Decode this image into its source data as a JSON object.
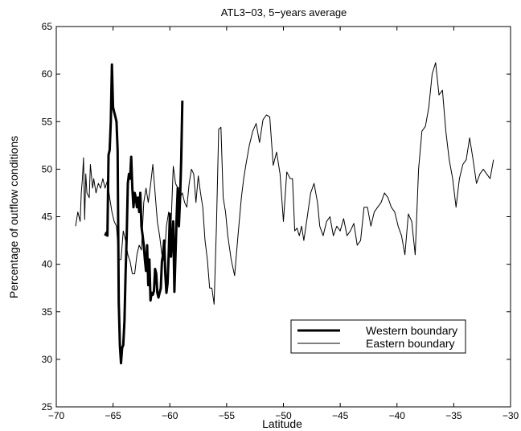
{
  "chart_data": {
    "type": "line",
    "title": "ATL3−03, 5−years average",
    "xlabel": "Latitude",
    "ylabel": "Percentage of outflow conditions",
    "xlim": [
      -70,
      -30
    ],
    "ylim": [
      25,
      65
    ],
    "xticks": [
      -70,
      -65,
      -60,
      -55,
      -50,
      -45,
      -40,
      -35,
      -30
    ],
    "xtick_labels": [
      "−70",
      "−65",
      "−60",
      "−55",
      "−50",
      "−45",
      "−40",
      "−35",
      "−30"
    ],
    "yticks": [
      25,
      30,
      35,
      40,
      45,
      50,
      55,
      60,
      65
    ],
    "ytick_labels": [
      "25",
      "30",
      "35",
      "40",
      "45",
      "50",
      "55",
      "60",
      "65"
    ],
    "grid": false,
    "legend_position": "lower-right",
    "series": [
      {
        "name": "Western boundary",
        "style": "thick",
        "color": "#000000",
        "points": [
          [
            -65.7,
            43.0
          ],
          [
            -65.6,
            43.3
          ],
          [
            -65.5,
            43.0
          ],
          [
            -65.4,
            51.5
          ],
          [
            -65.3,
            52.0
          ],
          [
            -65.2,
            55.0
          ],
          [
            -65.1,
            61.0
          ],
          [
            -65.0,
            56.5
          ],
          [
            -64.9,
            56.0
          ],
          [
            -64.8,
            55.5
          ],
          [
            -64.7,
            55.0
          ],
          [
            -64.6,
            52.0
          ],
          [
            -64.5,
            36.0
          ],
          [
            -64.4,
            31.5
          ],
          [
            -64.3,
            29.6
          ],
          [
            -64.2,
            31.2
          ],
          [
            -64.1,
            31.5
          ],
          [
            -64.0,
            34.0
          ],
          [
            -63.9,
            39.0
          ],
          [
            -63.8,
            43.0
          ],
          [
            -63.7,
            48.5
          ],
          [
            -63.6,
            49.5
          ],
          [
            -63.5,
            49.0
          ],
          [
            -63.4,
            51.3
          ],
          [
            -63.3,
            48.0
          ],
          [
            -63.2,
            46.0
          ],
          [
            -63.1,
            47.5
          ],
          [
            -63.0,
            47.0
          ],
          [
            -62.9,
            46.0
          ],
          [
            -62.8,
            47.0
          ],
          [
            -62.7,
            45.5
          ],
          [
            -62.6,
            47.5
          ],
          [
            -62.5,
            44.0
          ],
          [
            -62.4,
            43.0
          ],
          [
            -62.3,
            42.0
          ],
          [
            -62.2,
            40.5
          ],
          [
            -62.1,
            39.3
          ],
          [
            -62.0,
            42.0
          ],
          [
            -61.9,
            37.8
          ],
          [
            -61.8,
            40.5
          ],
          [
            -61.7,
            36.2
          ],
          [
            -61.6,
            37.0
          ],
          [
            -61.5,
            36.8
          ],
          [
            -61.4,
            37.2
          ],
          [
            -61.3,
            39.5
          ],
          [
            -61.2,
            39.0
          ],
          [
            -61.1,
            37.0
          ],
          [
            -61.0,
            36.5
          ],
          [
            -60.9,
            37.0
          ],
          [
            -60.8,
            37.5
          ],
          [
            -60.7,
            40.3
          ],
          [
            -60.6,
            41.0
          ],
          [
            -60.5,
            42.5
          ],
          [
            -60.4,
            39.0
          ],
          [
            -60.3,
            37.0
          ],
          [
            -60.2,
            38.0
          ],
          [
            -60.1,
            41.0
          ],
          [
            -60.0,
            45.3
          ],
          [
            -59.9,
            40.8
          ],
          [
            -59.8,
            43.0
          ],
          [
            -59.7,
            44.5
          ],
          [
            -59.6,
            37.1
          ],
          [
            -59.5,
            41.0
          ],
          [
            -59.4,
            45.0
          ],
          [
            -59.3,
            48.0
          ],
          [
            -59.2,
            44.0
          ],
          [
            -59.1,
            47.0
          ],
          [
            -59.0,
            51.0
          ],
          [
            -58.9,
            57.2
          ]
        ]
      },
      {
        "name": "Eastern boundary",
        "style": "thin",
        "color": "#000000",
        "points": [
          [
            -68.3,
            44.0
          ],
          [
            -68.1,
            45.5
          ],
          [
            -67.9,
            44.5
          ],
          [
            -67.8,
            47.5
          ],
          [
            -67.7,
            49.0
          ],
          [
            -67.6,
            51.2
          ],
          [
            -67.5,
            44.7
          ],
          [
            -67.4,
            49.5
          ],
          [
            -67.3,
            47.5
          ],
          [
            -67.1,
            47.0
          ],
          [
            -67.0,
            50.5
          ],
          [
            -66.8,
            48.0
          ],
          [
            -66.7,
            49.0
          ],
          [
            -66.5,
            47.5
          ],
          [
            -66.3,
            48.5
          ],
          [
            -66.1,
            48.0
          ],
          [
            -65.9,
            49.0
          ],
          [
            -65.7,
            48.0
          ],
          [
            -65.5,
            48.8
          ],
          [
            -65.3,
            47.0
          ],
          [
            -65.1,
            45.5
          ],
          [
            -64.9,
            44.5
          ],
          [
            -64.7,
            44.0
          ],
          [
            -64.5,
            40.5
          ],
          [
            -64.3,
            40.5
          ],
          [
            -64.1,
            43.5
          ],
          [
            -63.9,
            42.5
          ],
          [
            -63.7,
            41.0
          ],
          [
            -63.5,
            40.3
          ],
          [
            -63.3,
            39.0
          ],
          [
            -63.1,
            39.0
          ],
          [
            -62.9,
            41.0
          ],
          [
            -62.7,
            42.0
          ],
          [
            -62.5,
            41.5
          ],
          [
            -62.3,
            46.5
          ],
          [
            -62.1,
            48.0
          ],
          [
            -61.9,
            46.5
          ],
          [
            -61.7,
            48.3
          ],
          [
            -61.5,
            50.5
          ],
          [
            -61.3,
            47.5
          ],
          [
            -61.1,
            44.5
          ],
          [
            -60.9,
            43.0
          ],
          [
            -60.7,
            41.0
          ],
          [
            -60.5,
            40.3
          ],
          [
            -60.3,
            44.0
          ],
          [
            -60.1,
            45.5
          ],
          [
            -59.9,
            44.0
          ],
          [
            -59.7,
            50.3
          ],
          [
            -59.5,
            48.5
          ],
          [
            -59.3,
            48.0
          ],
          [
            -59.1,
            47.0
          ],
          [
            -58.9,
            47.5
          ],
          [
            -58.7,
            46.5
          ],
          [
            -58.5,
            46.0
          ],
          [
            -58.3,
            48.5
          ],
          [
            -58.1,
            50.0
          ],
          [
            -57.9,
            49.5
          ],
          [
            -57.7,
            46.5
          ],
          [
            -57.5,
            49.3
          ],
          [
            -57.3,
            47.5
          ],
          [
            -57.1,
            46.0
          ],
          [
            -56.9,
            42.5
          ],
          [
            -56.7,
            40.5
          ],
          [
            -56.5,
            37.5
          ],
          [
            -56.3,
            37.5
          ],
          [
            -56.1,
            35.8
          ],
          [
            -55.9,
            44.0
          ],
          [
            -55.7,
            54.2
          ],
          [
            -55.5,
            54.4
          ],
          [
            -55.3,
            47.0
          ],
          [
            -55.1,
            45.5
          ],
          [
            -54.9,
            43.0
          ],
          [
            -54.6,
            40.5
          ],
          [
            -54.3,
            38.8
          ],
          [
            -54.0,
            43.0
          ],
          [
            -53.7,
            47.0
          ],
          [
            -53.5,
            49.0
          ],
          [
            -53.3,
            50.5
          ],
          [
            -53.0,
            52.5
          ],
          [
            -52.7,
            54.0
          ],
          [
            -52.4,
            54.8
          ],
          [
            -52.1,
            52.8
          ],
          [
            -51.8,
            55.2
          ],
          [
            -51.5,
            55.7
          ],
          [
            -51.2,
            55.5
          ],
          [
            -50.9,
            50.4
          ],
          [
            -50.6,
            51.8
          ],
          [
            -50.3,
            49.5
          ],
          [
            -50.0,
            44.5
          ],
          [
            -49.7,
            49.7
          ],
          [
            -49.4,
            49.0
          ],
          [
            -49.2,
            49.0
          ],
          [
            -49.0,
            43.5
          ],
          [
            -48.8,
            43.8
          ],
          [
            -48.6,
            43.0
          ],
          [
            -48.4,
            44.0
          ],
          [
            -48.2,
            42.5
          ],
          [
            -47.9,
            45.0
          ],
          [
            -47.6,
            47.5
          ],
          [
            -47.3,
            48.5
          ],
          [
            -47.0,
            46.5
          ],
          [
            -46.8,
            44.0
          ],
          [
            -46.5,
            43.0
          ],
          [
            -46.2,
            44.5
          ],
          [
            -45.9,
            45.0
          ],
          [
            -45.6,
            43.0
          ],
          [
            -45.3,
            44.0
          ],
          [
            -45.0,
            43.5
          ],
          [
            -44.7,
            44.8
          ],
          [
            -44.4,
            43.0
          ],
          [
            -44.1,
            43.5
          ],
          [
            -43.8,
            44.3
          ],
          [
            -43.5,
            42.0
          ],
          [
            -43.2,
            42.5
          ],
          [
            -42.9,
            46.0
          ],
          [
            -42.6,
            46.0
          ],
          [
            -42.3,
            44.0
          ],
          [
            -42.0,
            45.5
          ],
          [
            -41.7,
            46.0
          ],
          [
            -41.4,
            46.5
          ],
          [
            -41.1,
            47.5
          ],
          [
            -40.8,
            47.0
          ],
          [
            -40.5,
            46.0
          ],
          [
            -40.2,
            45.5
          ],
          [
            -39.9,
            44.0
          ],
          [
            -39.6,
            43.0
          ],
          [
            -39.3,
            41.0
          ],
          [
            -39.0,
            45.3
          ],
          [
            -38.7,
            44.5
          ],
          [
            -38.4,
            41.0
          ],
          [
            -38.1,
            50.0
          ],
          [
            -37.8,
            54.0
          ],
          [
            -37.5,
            54.5
          ],
          [
            -37.2,
            56.5
          ],
          [
            -36.9,
            60.0
          ],
          [
            -36.6,
            61.2
          ],
          [
            -36.3,
            57.8
          ],
          [
            -36.0,
            58.3
          ],
          [
            -35.7,
            54.0
          ],
          [
            -35.4,
            51.0
          ],
          [
            -35.1,
            49.0
          ],
          [
            -34.8,
            46.0
          ],
          [
            -34.5,
            49.0
          ],
          [
            -34.2,
            50.5
          ],
          [
            -33.9,
            51.0
          ],
          [
            -33.6,
            53.3
          ],
          [
            -33.3,
            51.0
          ],
          [
            -33.0,
            48.5
          ],
          [
            -32.7,
            49.5
          ],
          [
            -32.4,
            50.0
          ],
          [
            -32.1,
            49.5
          ],
          [
            -31.8,
            49.0
          ],
          [
            -31.5,
            51.0
          ]
        ]
      }
    ]
  }
}
